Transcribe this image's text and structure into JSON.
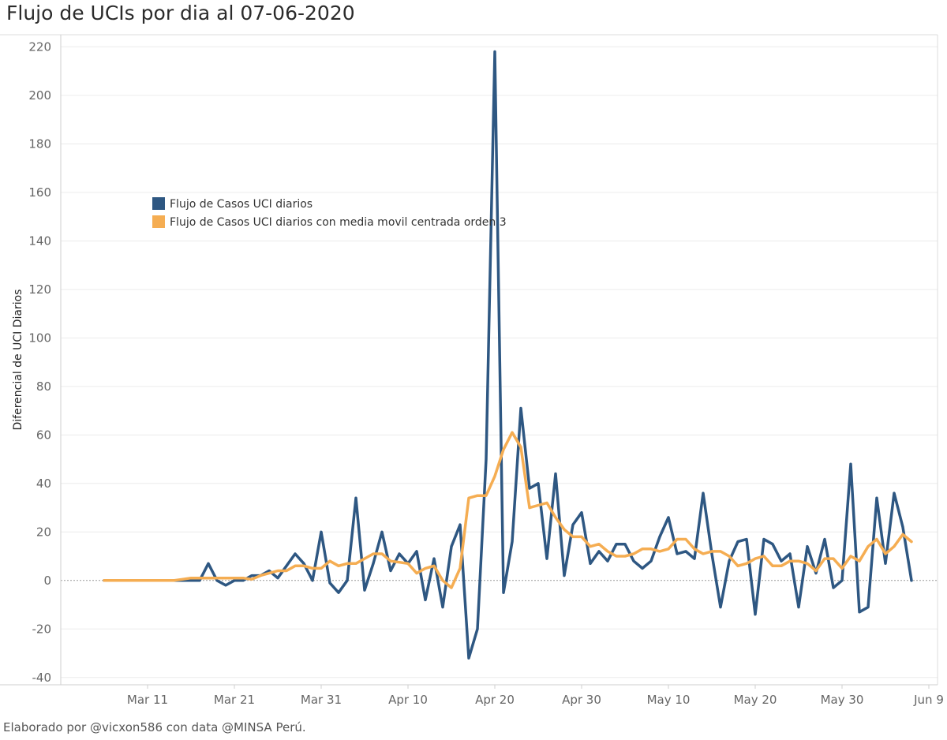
{
  "title": "Flujo de UCIs por dia al 07-06-2020",
  "footer": "Elaborado por @vicxon586 con data @MINSA Perú.",
  "chart_data": {
    "type": "line",
    "ylabel": "Diferencial de UCI Diarios",
    "xlabel": "",
    "ylim": [
      -43,
      225
    ],
    "yticks": [
      -40,
      -20,
      0,
      20,
      40,
      60,
      80,
      100,
      120,
      140,
      160,
      180,
      200,
      220
    ],
    "x_start_date": "2020-03-06",
    "x_end_date": "2020-06-07",
    "xlim": [
      "2020-03-01",
      "2020-06-10"
    ],
    "xticks": [
      {
        "date": "2020-03-11",
        "label": "Mar 11"
      },
      {
        "date": "2020-03-21",
        "label": "Mar 21"
      },
      {
        "date": "2020-03-31",
        "label": "Mar 31"
      },
      {
        "date": "2020-04-10",
        "label": "Apr 10"
      },
      {
        "date": "2020-04-20",
        "label": "Apr 20"
      },
      {
        "date": "2020-04-30",
        "label": "Apr 30"
      },
      {
        "date": "2020-05-10",
        "label": "May 10"
      },
      {
        "date": "2020-05-20",
        "label": "May 20"
      },
      {
        "date": "2020-05-30",
        "label": "May 30"
      },
      {
        "date": "2020-06-09",
        "label": "Jun 9"
      }
    ],
    "legend_position": "top-left",
    "grid": true,
    "zero_line": "dotted",
    "series": [
      {
        "name": "Flujo de Casos UCI diarios",
        "color": "#2e5782",
        "values": [
          0,
          0,
          0,
          0,
          0,
          0,
          0,
          0,
          0,
          0,
          0,
          0,
          7,
          0,
          -2,
          0,
          0,
          2,
          2,
          4,
          1,
          6,
          11,
          7,
          0,
          20,
          -1,
          -5,
          0,
          34,
          -4,
          7,
          20,
          4,
          11,
          7,
          12,
          -8,
          9,
          -11,
          14,
          23,
          -32,
          -20,
          50,
          218,
          -5,
          16,
          71,
          38,
          40,
          9,
          44,
          2,
          23,
          28,
          7,
          12,
          8,
          15,
          15,
          8,
          5,
          8,
          18,
          26,
          11,
          12,
          9,
          36,
          11,
          -11,
          8,
          16,
          17,
          -14,
          17,
          15,
          8,
          11,
          -11,
          14,
          3,
          17,
          -3,
          0,
          48,
          -13,
          -11,
          34,
          7,
          36,
          22,
          0
        ]
      },
      {
        "name": "Flujo de Casos UCI diarios con media movil centrada orden 3",
        "color": "#f5ad52",
        "values": [
          0,
          0,
          0,
          0,
          0,
          0,
          0,
          0,
          0,
          0.5,
          1,
          1,
          1,
          1,
          1,
          1,
          1,
          0.5,
          2,
          3,
          4,
          4,
          6,
          6,
          5,
          5,
          8,
          6,
          7,
          7,
          9,
          11,
          11,
          8,
          7.5,
          7,
          3,
          5,
          6,
          0,
          -3,
          5,
          34,
          35,
          35,
          43,
          54,
          61,
          55,
          30,
          31,
          32,
          26,
          21,
          18,
          18,
          14,
          15,
          12,
          10,
          10,
          11,
          13,
          13,
          12,
          13,
          17,
          17,
          13,
          11,
          12,
          12,
          10,
          6,
          7,
          9,
          10,
          6,
          6,
          8,
          8,
          7,
          4,
          9,
          9,
          5,
          10,
          8,
          14,
          17,
          11,
          14,
          19,
          16
        ]
      }
    ]
  }
}
